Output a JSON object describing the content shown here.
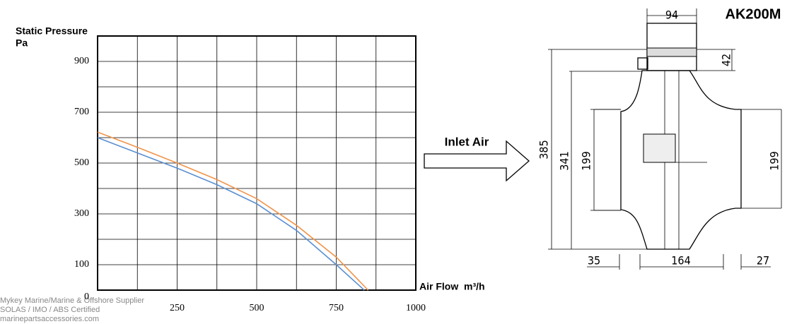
{
  "chart_data": {
    "type": "line",
    "y_label_lines": [
      "Static Pressure",
      "Pa"
    ],
    "x_label": "Air Flow",
    "x_unit": "m³/h",
    "xlim": [
      0,
      1000
    ],
    "ylim": [
      0,
      1000
    ],
    "xticks": [
      250,
      500,
      750,
      1000
    ],
    "minor_xticks": [
      125,
      375,
      625,
      875
    ],
    "yticks": [
      0,
      100,
      300,
      500,
      700,
      900
    ],
    "minor_yticks": [
      200,
      400,
      600,
      800,
      1000
    ],
    "grid": true,
    "series": [
      {
        "color": "#5b8fd0",
        "x": [
          0,
          125,
          250,
          375,
          500,
          625,
          750,
          838
        ],
        "values": [
          600,
          540,
          480,
          415,
          340,
          235,
          100,
          0
        ]
      },
      {
        "color": "#f0944a",
        "x": [
          0,
          125,
          250,
          375,
          500,
          625,
          750,
          850
        ],
        "values": [
          622,
          562,
          500,
          435,
          360,
          255,
          130,
          0
        ]
      }
    ]
  },
  "drawing": {
    "model": "AK200M",
    "inlet": "Inlet Air",
    "dims": {
      "top_width": "94",
      "top_height": "42",
      "total_height": "385",
      "body_height": "341",
      "inlet_dia_left": "199",
      "inlet_dia_right": "199",
      "left_spigot": "35",
      "body_width": "164",
      "right_spigot": "27"
    }
  },
  "watermark": [
    "Mykey Marine/Marine & Offshore Supplier",
    "SOLAS / IMO / ABS Certified",
    "marinepartsaccessories.com"
  ]
}
